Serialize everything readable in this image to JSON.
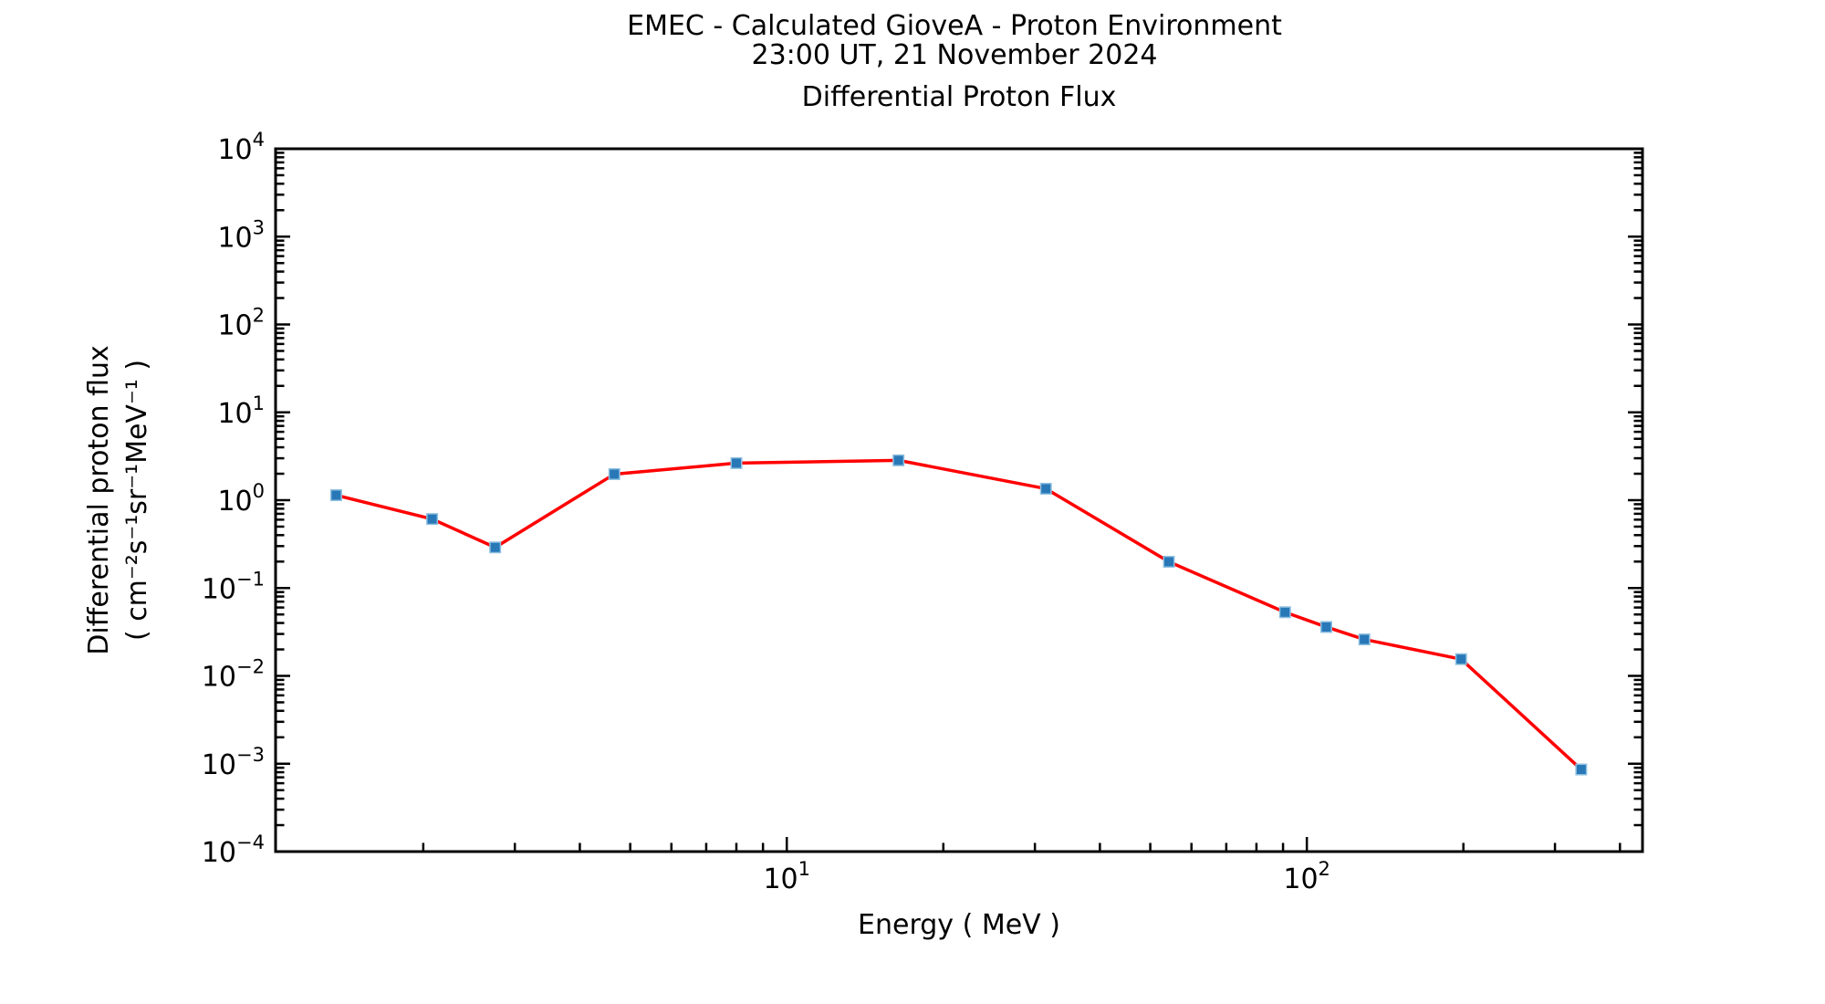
{
  "header": {
    "title_line1": "EMEC - Calculated GioveA - Proton Environment",
    "title_line2": "23:00 UT, 21 November 2024"
  },
  "chart_data": {
    "type": "line",
    "axes_title": "Differential Proton Flux",
    "xlabel": "Energy ( MeV )",
    "ylabel_line1": "Differential proton flux",
    "ylabel_line2": "( cm⁻²s⁻¹sr⁻¹MeV⁻¹ )",
    "x_scale": "log",
    "y_scale": "log",
    "xlim": [
      1.04,
      442
    ],
    "ylim": [
      0.0001,
      10000
    ],
    "grid": false,
    "legend": "none",
    "background_color": "#ffffff",
    "axis_color": "#000000",
    "x_major_ticks": [
      {
        "exp": 1,
        "label": "10¹"
      },
      {
        "exp": 2,
        "label": "10²"
      }
    ],
    "y_major_ticks": [
      {
        "exp": 4,
        "label": "10⁴"
      },
      {
        "exp": 3,
        "label": "10³"
      },
      {
        "exp": 2,
        "label": "10²"
      },
      {
        "exp": 1,
        "label": "10¹"
      },
      {
        "exp": 0,
        "label": "10⁰"
      },
      {
        "exp": -1,
        "label": "10⁻¹"
      },
      {
        "exp": -2,
        "label": "10⁻²"
      },
      {
        "exp": -3,
        "label": "10⁻³"
      },
      {
        "exp": -4,
        "label": "10⁻⁴"
      }
    ],
    "series": [
      {
        "name": "Differential proton flux",
        "line_color": "#ff0000",
        "marker": "square",
        "marker_color": "#2878b8",
        "marker_edge_color": "#8fc0e0",
        "x": [
          1.36,
          2.08,
          2.75,
          4.66,
          8.0,
          16.4,
          31.5,
          54.3,
          90.8,
          109,
          129,
          198,
          337
        ],
        "y": [
          1.14,
          0.61,
          0.29,
          1.98,
          2.64,
          2.84,
          1.35,
          0.199,
          0.053,
          0.036,
          0.026,
          0.0155,
          0.00086
        ]
      }
    ]
  }
}
